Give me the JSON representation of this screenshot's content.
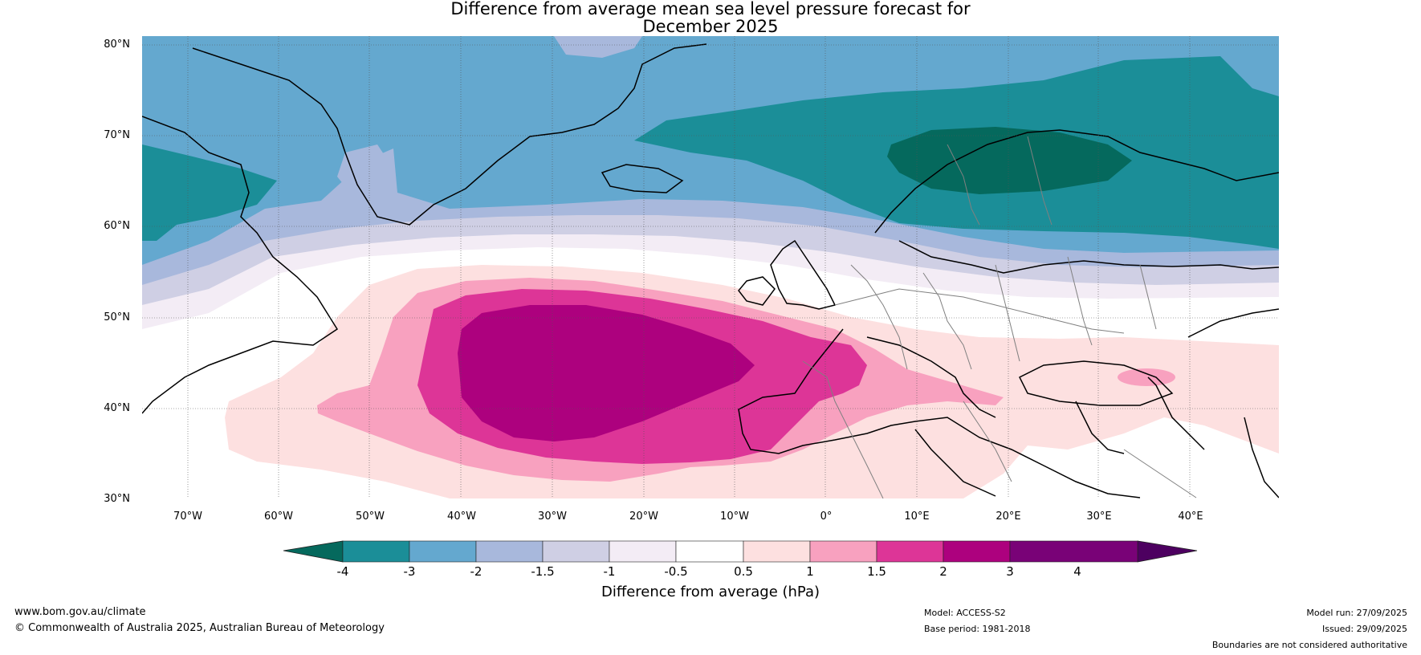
{
  "title": {
    "line1": "Difference from average mean sea level pressure forecast for",
    "line2": "December 2025"
  },
  "map": {
    "lat_labels": [
      "80°N",
      "70°N",
      "60°N",
      "50°N",
      "40°N",
      "30°N"
    ],
    "lon_labels": [
      "70°W",
      "60°W",
      "50°W",
      "40°W",
      "30°W",
      "20°W",
      "10°W",
      "0°",
      "10°E",
      "20°E",
      "30°E",
      "40°E"
    ]
  },
  "colorbar": {
    "ticks": [
      "-4",
      "-3",
      "-2",
      "-1.5",
      "-1",
      "-0.5",
      "0.5",
      "1",
      "1.5",
      "2",
      "3",
      "4"
    ],
    "colors": [
      "#1b8e98",
      "#64a8cf",
      "#a8b8dc",
      "#cfcfe4",
      "#f3ecf5",
      "#ffffff",
      "#fde0e0",
      "#f8a1bf",
      "#dd3597",
      "#ad017e",
      "#790277"
    ],
    "extend_low_color": "#05695d",
    "extend_high_color": "#4d0060",
    "label": "Difference from average (hPa)"
  },
  "footer": {
    "website": "www.bom.gov.au/climate",
    "copyright": "© Commonwealth of Australia 2025, Australian Bureau of Meteorology",
    "model": "Model: ACCESS-S2",
    "base_period": "Base period: 1981-2018",
    "model_run": "Model run: 27/09/2025",
    "issued": "Issued: 29/09/2025",
    "disclaimer": "Boundaries are not considered authoritative"
  }
}
